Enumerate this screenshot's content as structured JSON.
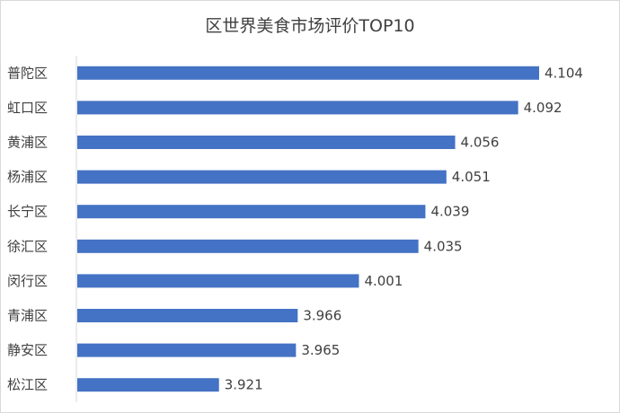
{
  "chart_data": {
    "type": "bar",
    "orientation": "horizontal",
    "title": "区世界美食市场评价TOP10",
    "categories": [
      "普陀区",
      "虹口区",
      "黄浦区",
      "杨浦区",
      "长宁区",
      "徐汇区",
      "闵行区",
      "青浦区",
      "静安区",
      "松江区"
    ],
    "values": [
      4.104,
      4.092,
      4.056,
      4.051,
      4.039,
      4.035,
      4.001,
      3.966,
      3.965,
      3.921
    ],
    "xlim": [
      3.84,
      4.104
    ],
    "bar_color": "#4472c4",
    "grid": false,
    "legend": "none",
    "data_labels": true
  }
}
